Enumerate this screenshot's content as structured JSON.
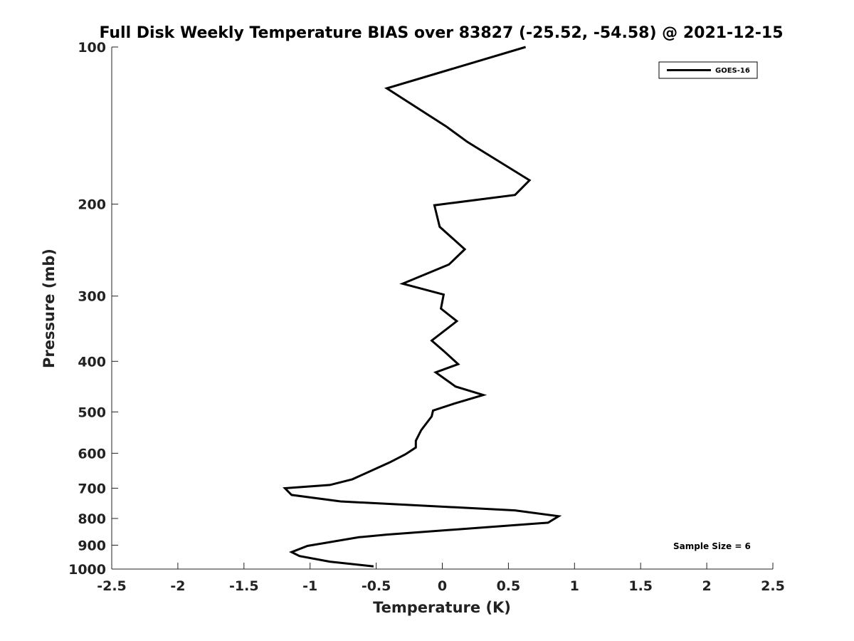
{
  "chart_data": {
    "type": "line",
    "title": "Full Disk Weekly Temperature BIAS over 83827 (-25.52, -54.58) @ 2021-12-15",
    "xlabel": "Temperature (K)",
    "ylabel": "Pressure (mb)",
    "xlim": [
      -2.5,
      2.5
    ],
    "ylim": [
      100,
      1000
    ],
    "y_scale": "log",
    "y_reversed": true,
    "x_ticks": [
      "-2.5",
      "-2",
      "-1.5",
      "-1",
      "-0.5",
      "0",
      "0.5",
      "1",
      "1.5",
      "2",
      "2.5"
    ],
    "y_ticks": [
      "100",
      "200",
      "300",
      "400",
      "500",
      "600",
      "700",
      "800",
      "900",
      "1000"
    ],
    "grid": false,
    "legend": {
      "position": "top-right",
      "entries": [
        "GOES-16"
      ]
    },
    "annotation": "Sample Size = 6",
    "series": [
      {
        "name": "GOES-16",
        "color": "#000000",
        "x": [
          0.63,
          -0.42,
          0.03,
          0.19,
          0.66,
          0.55,
          -0.06,
          -0.02,
          0.17,
          0.05,
          -0.3,
          0.01,
          -0.01,
          0.11,
          -0.08,
          0.01,
          0.12,
          -0.05,
          0.1,
          0.31,
          0.09,
          -0.07,
          -0.08,
          -0.16,
          -0.2,
          -0.2,
          -0.28,
          -0.4,
          -0.68,
          -0.85,
          -1.19,
          -1.14,
          -0.77,
          0.55,
          0.88,
          0.8,
          -0.42,
          -0.63,
          -1.02,
          -1.14,
          -1.08,
          -0.85,
          -0.52
        ],
        "y": [
          100,
          120,
          142,
          152,
          180,
          192,
          201,
          221,
          244,
          261,
          284,
          298,
          317,
          335,
          365,
          382,
          405,
          420,
          447,
          464,
          482,
          497,
          510,
          542,
          568,
          585,
          603,
          625,
          673,
          690,
          700,
          721,
          742,
          772,
          792,
          815,
          859,
          869,
          903,
          928,
          944,
          968,
          988
        ]
      }
    ]
  }
}
